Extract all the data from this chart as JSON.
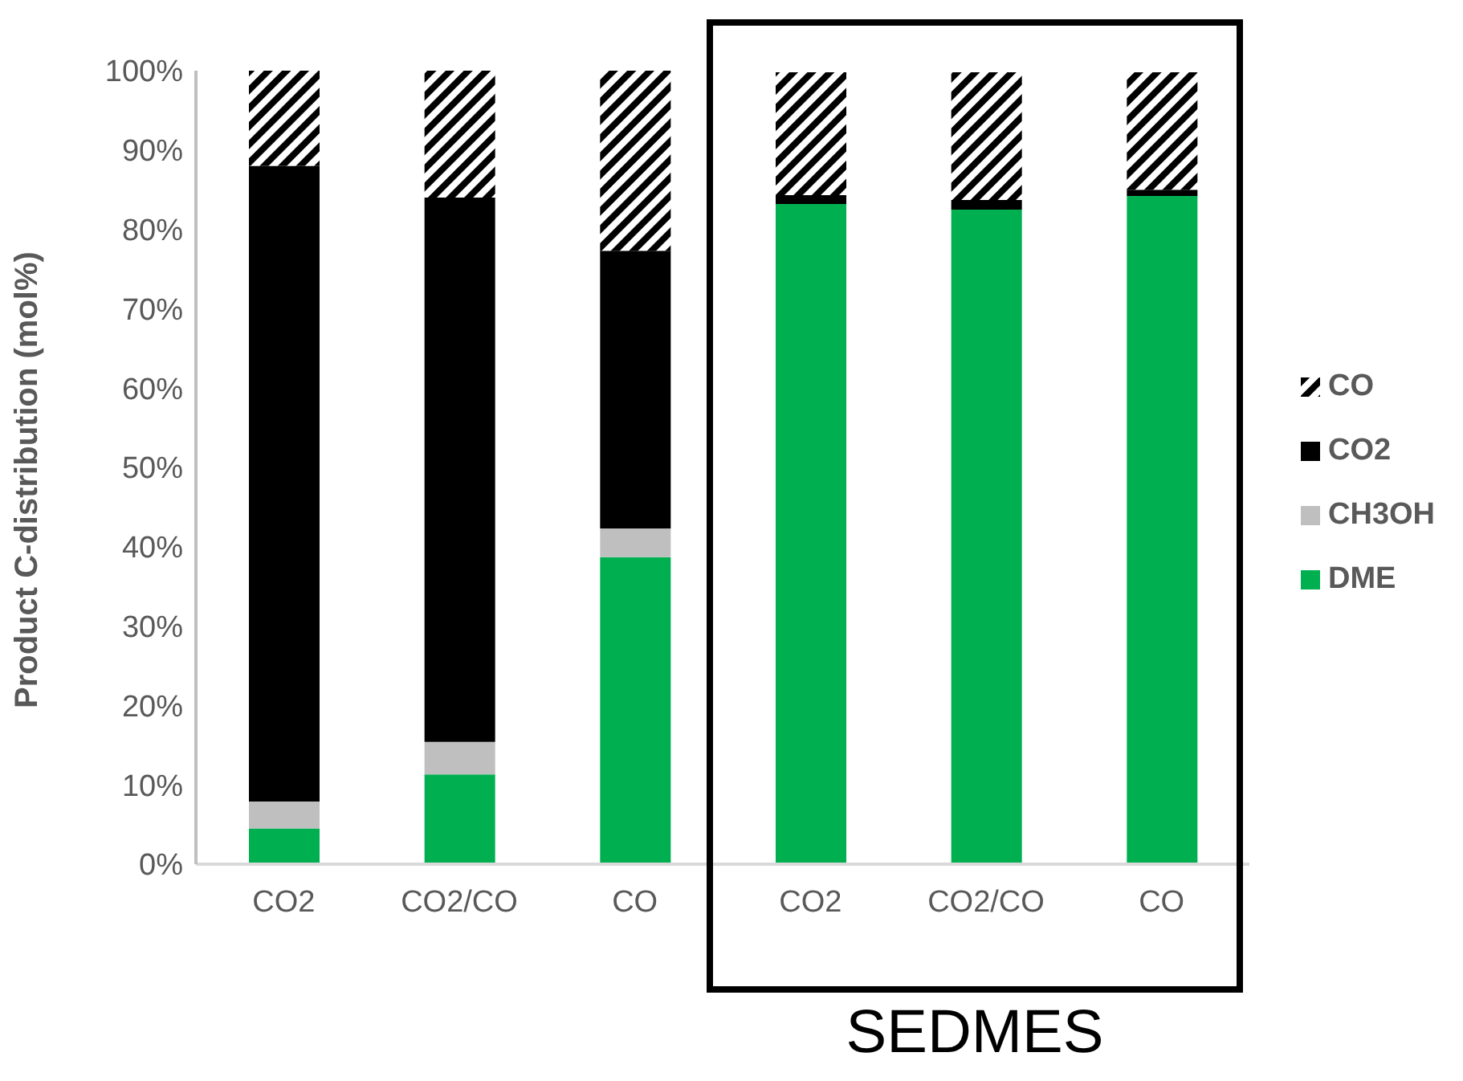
{
  "chart_data": {
    "type": "bar",
    "stacked": true,
    "ylabel": "Product C-distribution (mol%)",
    "categories": [
      "CO2",
      "CO2/CO",
      "CO",
      "CO2",
      "CO2/CO",
      "CO"
    ],
    "series": [
      {
        "name": "DME",
        "color": "#00b050",
        "values": [
          4.5,
          11.3,
          38.7,
          83.2,
          82.5,
          84.2
        ]
      },
      {
        "name": "CH3OH",
        "color": "#bfbfbf",
        "values": [
          3.4,
          4.1,
          3.6,
          null,
          null,
          null
        ]
      },
      {
        "name": "CO2",
        "color": "#000000",
        "values": [
          80.1,
          68.6,
          35.0,
          1.1,
          1.2,
          0.8
        ]
      },
      {
        "name": "CO",
        "color": "#000000",
        "values": [
          12.0,
          16.0,
          22.7,
          15.5,
          16.1,
          14.8
        ]
      }
    ],
    "ylim": [
      0,
      100
    ],
    "yticks": [
      {
        "value": 0,
        "label": "0%"
      },
      {
        "value": 10,
        "label": "10%"
      },
      {
        "value": 20,
        "label": "20%"
      },
      {
        "value": 30,
        "label": "30%"
      },
      {
        "value": 40,
        "label": "40%"
      },
      {
        "value": 50,
        "label": "50%"
      },
      {
        "value": 60,
        "label": "60%"
      },
      {
        "value": 70,
        "label": "70%"
      },
      {
        "value": 80,
        "label": "80%"
      },
      {
        "value": 90,
        "label": "90%"
      },
      {
        "value": 100,
        "label": "100%"
      }
    ],
    "grid": false,
    "legend": "right",
    "annotations": [
      "SEDMES"
    ]
  }
}
